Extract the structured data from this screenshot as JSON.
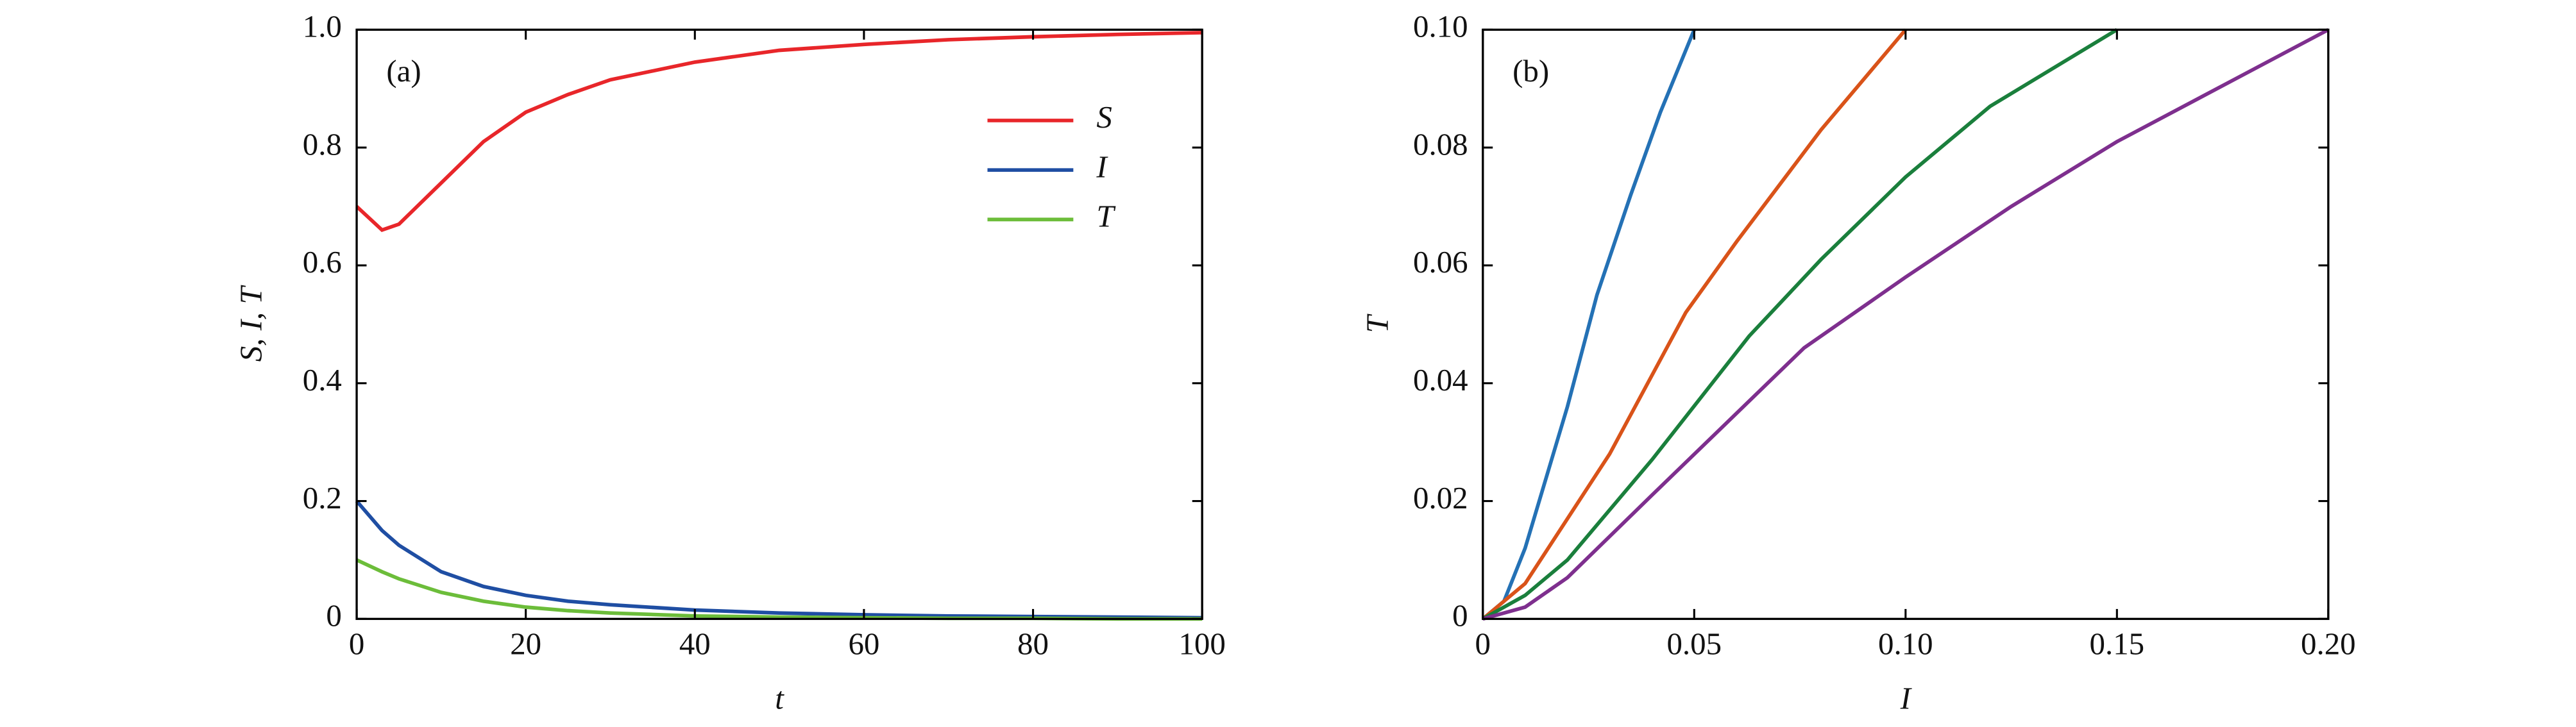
{
  "chart_data": [
    {
      "type": "line",
      "annotation": "(a)",
      "x_label": "t",
      "y_label": "S, I, T",
      "legend": "upper right",
      "x": [
        0,
        3,
        5,
        10,
        15,
        20,
        25,
        30,
        40,
        50,
        60,
        70,
        80,
        90,
        100
      ],
      "series": [
        {
          "name": "S",
          "color": "#e8262a",
          "values": [
            0.7,
            0.66,
            0.67,
            0.74,
            0.81,
            0.86,
            0.89,
            0.915,
            0.945,
            0.965,
            0.975,
            0.983,
            0.988,
            0.992,
            0.995
          ]
        },
        {
          "name": "I",
          "color": "#1f4ea3",
          "values": [
            0.2,
            0.15,
            0.125,
            0.08,
            0.055,
            0.04,
            0.03,
            0.024,
            0.015,
            0.01,
            0.007,
            0.005,
            0.004,
            0.003,
            0.002
          ]
        },
        {
          "name": "T",
          "color": "#6cbd3a",
          "values": [
            0.1,
            0.08,
            0.068,
            0.045,
            0.03,
            0.02,
            0.014,
            0.01,
            0.005,
            0.003,
            0.002,
            0.001,
            0.001,
            0,
            0
          ]
        }
      ],
      "xlim": [
        0,
        100
      ],
      "xticks": [
        0,
        20,
        40,
        60,
        80,
        100
      ],
      "ylim": [
        0,
        1
      ],
      "yticks": [
        0,
        0.2,
        0.4,
        0.6,
        0.8,
        {
          "value": 1,
          "label": "1.0"
        }
      ]
    },
    {
      "type": "line",
      "annotation": "(b)",
      "x_label": "I",
      "y_label": "T",
      "series": [
        {
          "color": "#2471b5",
          "x": [
            0,
            0.005,
            0.01,
            0.015,
            0.02,
            0.027,
            0.035,
            0.042,
            0.05
          ],
          "values": [
            0,
            0.003,
            0.012,
            0.024,
            0.036,
            0.055,
            0.072,
            0.086,
            0.1
          ]
        },
        {
          "color": "#d95319",
          "x": [
            0,
            0.01,
            0.02,
            0.03,
            0.048,
            0.06,
            0.08,
            0.1
          ],
          "values": [
            0,
            0.006,
            0.017,
            0.028,
            0.052,
            0.064,
            0.083,
            0.1
          ]
        },
        {
          "color": "#1a7f3c",
          "x": [
            0,
            0.01,
            0.02,
            0.04,
            0.063,
            0.08,
            0.1,
            0.12,
            0.15
          ],
          "values": [
            0,
            0.004,
            0.01,
            0.027,
            0.048,
            0.061,
            0.075,
            0.087,
            0.1
          ]
        },
        {
          "color": "#7e2f8e",
          "x": [
            0,
            0.01,
            0.02,
            0.04,
            0.076,
            0.1,
            0.125,
            0.15,
            0.2
          ],
          "values": [
            0,
            0.002,
            0.007,
            0.021,
            0.046,
            0.058,
            0.07,
            0.081,
            0.1
          ]
        }
      ],
      "xlim": [
        0,
        0.2
      ],
      "xticks": [
        0,
        0.05,
        {
          "value": 0.1,
          "label": "0.10"
        },
        0.15,
        {
          "value": 0.2,
          "label": "0.20"
        }
      ],
      "ylim": [
        0,
        0.1
      ],
      "yticks": [
        0,
        0.02,
        0.04,
        0.06,
        0.08,
        {
          "value": 0.1,
          "label": "0.10"
        }
      ]
    }
  ]
}
